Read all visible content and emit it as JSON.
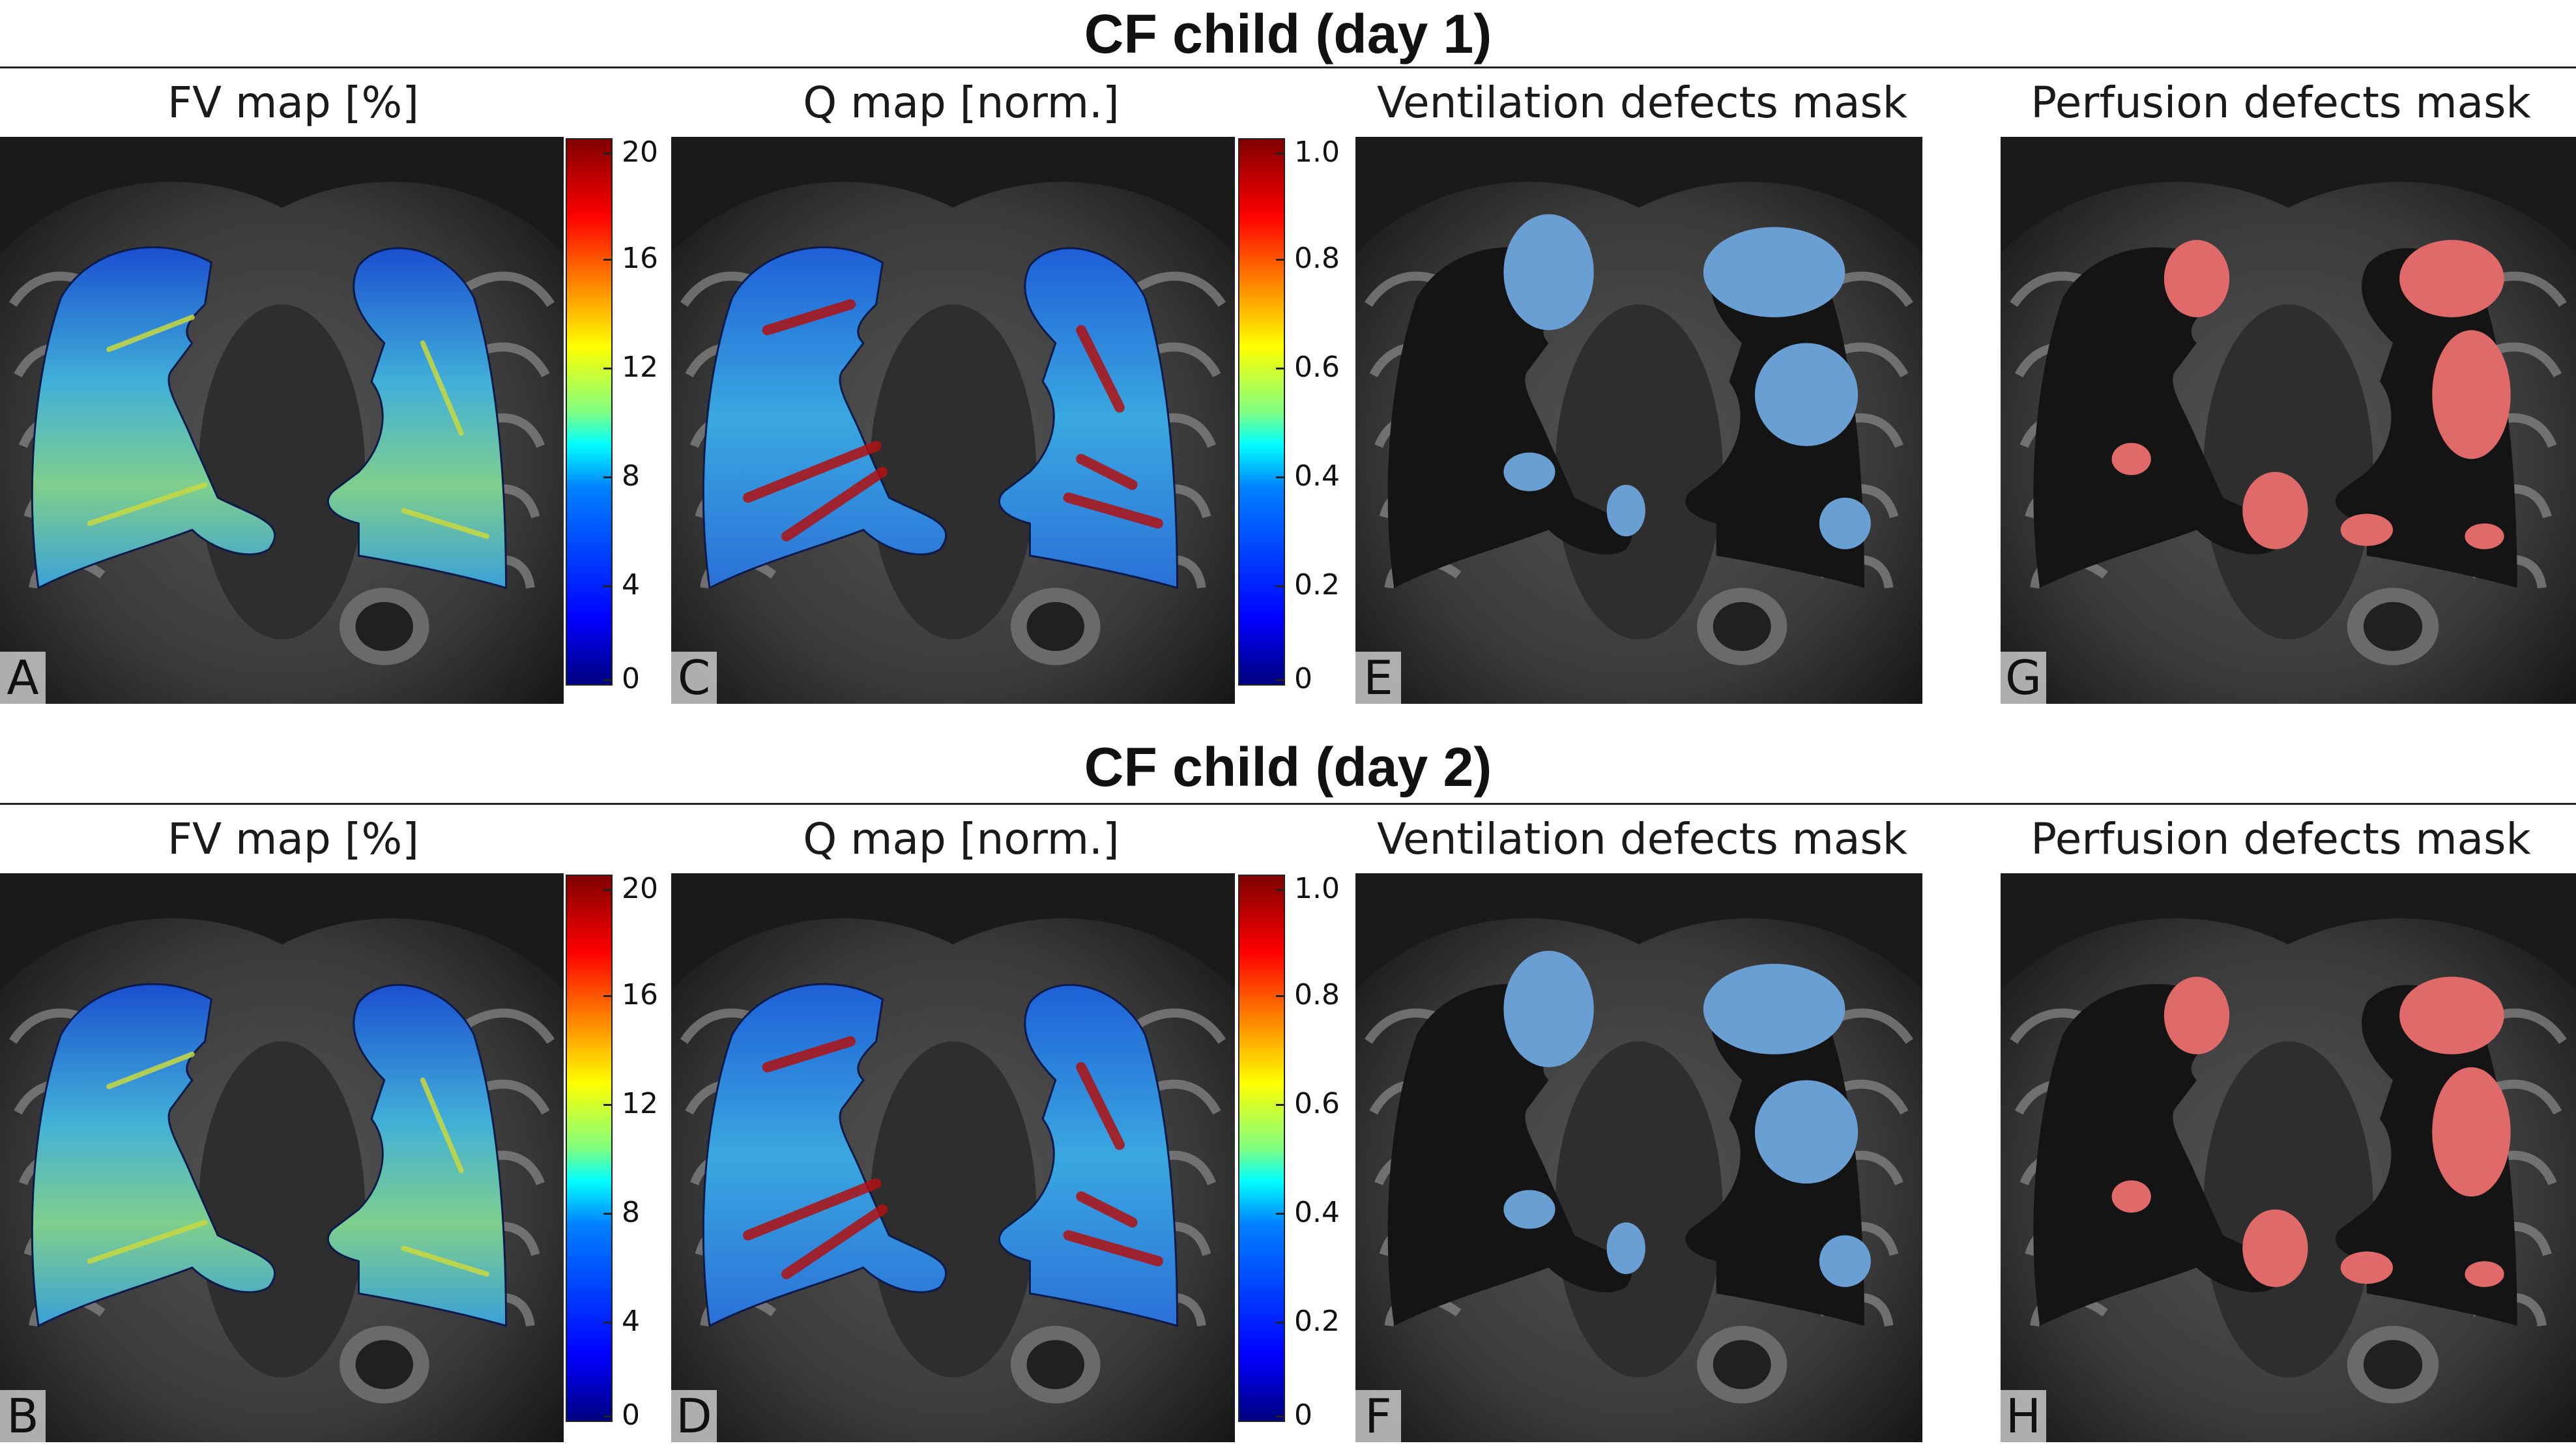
{
  "rows": [
    {
      "title": "CF child (day 1)",
      "panels": [
        {
          "title": "FV map [%]",
          "label": "A",
          "kind": "fv"
        },
        {
          "title": "Q map [norm.]",
          "label": "C",
          "kind": "q"
        },
        {
          "title": "Ventilation defects mask",
          "label": "E",
          "kind": "vmask"
        },
        {
          "title": "Perfusion defects mask",
          "label": "G",
          "kind": "pmask"
        }
      ]
    },
    {
      "title": "CF child (day 2)",
      "panels": [
        {
          "title": "FV map [%]",
          "label": "B",
          "kind": "fv"
        },
        {
          "title": "Q map [norm.]",
          "label": "D",
          "kind": "q"
        },
        {
          "title": "Ventilation defects mask",
          "label": "F",
          "kind": "vmask"
        },
        {
          "title": "Perfusion defects mask",
          "label": "H",
          "kind": "pmask"
        }
      ]
    }
  ],
  "colorbars": {
    "fv": {
      "ticks": [
        "20",
        "16",
        "12",
        "8",
        "4",
        "0"
      ]
    },
    "q": {
      "ticks": [
        "1.0",
        "0.8",
        "0.6",
        "0.4",
        "0.2",
        "0"
      ]
    }
  },
  "colors": {
    "ventilation_mask": "#6a9fd4",
    "perfusion_mask": "#e06a6a"
  }
}
